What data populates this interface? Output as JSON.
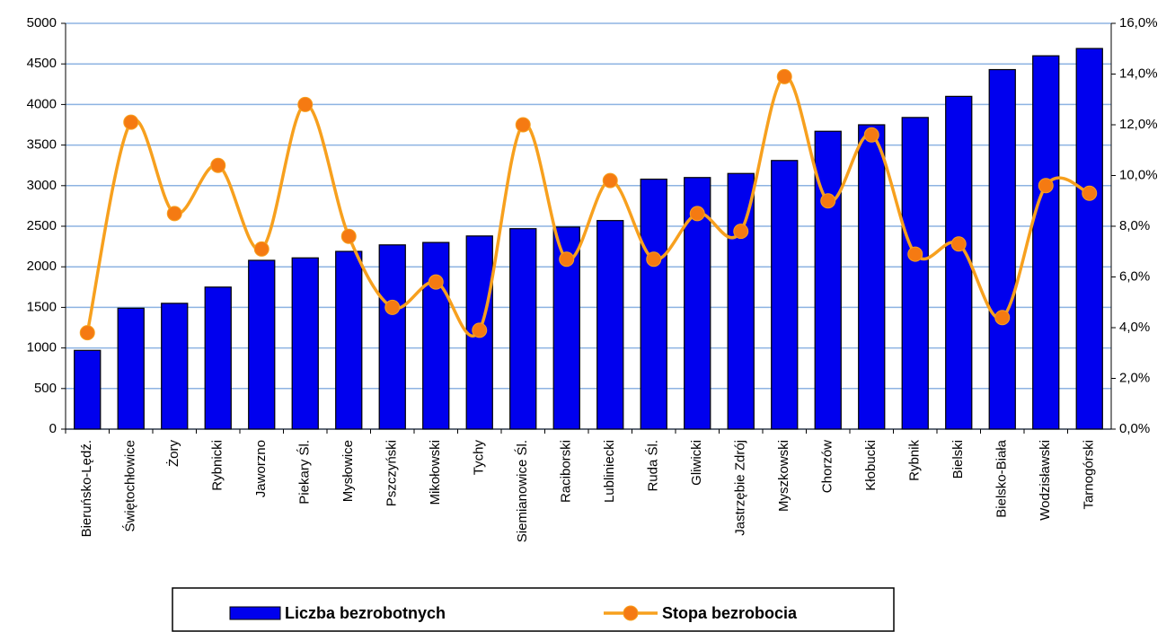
{
  "chart_data": {
    "type": "bar_line",
    "categories": [
      "Bieruńsko-Lędź.",
      "Świętochłowice",
      "Żory",
      "Rybnicki",
      "Jaworzno",
      "Piekary Śl.",
      "Mysłowice",
      "Pszczyński",
      "Mikołowski",
      "Tychy",
      "Siemianowice Śl.",
      "Raciborski",
      "Lubliniecki",
      "Ruda Śl.",
      "Gliwicki",
      "Jastrzębie Zdrój",
      "Myszkowski",
      "Chorzów",
      "Kłobucki",
      "Rybnik",
      "Bielski",
      "Bielsko-Biała",
      "Wodzisławski",
      "Tarnogórski"
    ],
    "series": [
      {
        "name": "Liczba bezrobotnych",
        "color": "#0000ee",
        "values": [
          970,
          1490,
          1550,
          1750,
          2080,
          2110,
          2190,
          2270,
          2300,
          2380,
          2470,
          2490,
          2570,
          3080,
          3100,
          3150,
          3310,
          3670,
          3750,
          3840,
          4100,
          4430,
          4600,
          4690
        ]
      },
      {
        "name": "Stopa bezrobocia",
        "color": "#f7a01e",
        "marker_color": "#f57a12",
        "axis": "y2",
        "values": [
          3.8,
          12.1,
          8.5,
          10.4,
          7.1,
          12.8,
          7.6,
          4.8,
          5.8,
          3.9,
          12.0,
          6.7,
          9.8,
          6.7,
          8.5,
          7.8,
          13.9,
          9.0,
          11.6,
          6.9,
          7.3,
          4.4,
          9.6,
          9.3
        ]
      }
    ],
    "ylim": [
      0,
      5000
    ],
    "yticks": [
      0,
      500,
      1000,
      1500,
      2000,
      2500,
      3000,
      3500,
      4000,
      4500,
      5000
    ],
    "y2lim": [
      0,
      16
    ],
    "y2ticks": [
      {
        "value": 0,
        "label": "0,0%"
      },
      {
        "value": 2,
        "label": "2,0%"
      },
      {
        "value": 4,
        "label": "4,0%"
      },
      {
        "value": 6,
        "label": "6,0%"
      },
      {
        "value": 8,
        "label": "8,0%"
      },
      {
        "value": 10,
        "label": "10,0%"
      },
      {
        "value": 12,
        "label": "12,0%"
      },
      {
        "value": 14,
        "label": "14,0%"
      },
      {
        "value": 16,
        "label": "16,0%"
      }
    ],
    "grid": true,
    "legend": "bottom"
  }
}
